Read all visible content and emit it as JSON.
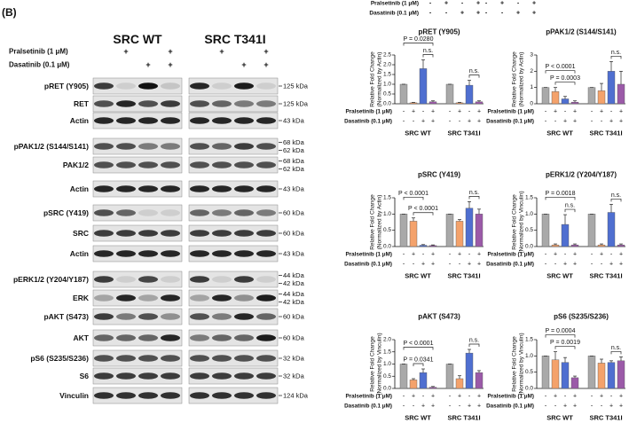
{
  "top_strip": {
    "treatments": [
      {
        "label": "Pralsetinib (1 μM)",
        "signs": [
          "-",
          "+",
          "-",
          "+",
          "-",
          "+",
          "-",
          "+"
        ]
      },
      {
        "label": "Dasatinib (0.1 μM)",
        "signs": [
          "-",
          "-",
          "+",
          "+",
          "-",
          "-",
          "+",
          "+"
        ]
      }
    ]
  },
  "blot": {
    "panel_label": "(B)",
    "columns": [
      "SRC WT",
      "SRC T341I"
    ],
    "treatments": [
      {
        "label": "Pralsetinib (1 μM)",
        "signs": [
          null,
          "+",
          null,
          "+",
          null,
          "+",
          null,
          "+"
        ]
      },
      {
        "label": "Dasatinib (0.1 μM)",
        "signs": [
          null,
          null,
          "+",
          "+",
          null,
          null,
          "+",
          "+"
        ]
      }
    ],
    "rows": [
      {
        "label": "pRET (Y905)",
        "kda": [
          "125 kDa"
        ]
      },
      {
        "label": "RET",
        "kda": [
          "125 kDa"
        ]
      },
      {
        "label": "Actin",
        "kda": [
          "43 kDa"
        ]
      },
      {
        "label": "pPAK1/2 (S144/S141)",
        "kda": [
          "68 kDa",
          "62 kDa"
        ]
      },
      {
        "label": "PAK1/2",
        "kda": [
          "68 kDa",
          "62 kDa"
        ]
      },
      {
        "label": "Actin",
        "kda": [
          "43 kDa"
        ]
      },
      {
        "label": "pSRC (Y419)",
        "kda": [
          "60 kDa"
        ]
      },
      {
        "label": "SRC",
        "kda": [
          "60 kDa"
        ]
      },
      {
        "label": "Actin",
        "kda": [
          "43 kDa"
        ]
      },
      {
        "label": "pERK1/2 (Y204/Y187)",
        "kda": [
          "44 kDa",
          "42 kDa"
        ]
      },
      {
        "label": "ERK",
        "kda": [
          "44 kDa",
          "42 kDa"
        ]
      },
      {
        "label": "pAKT (S473)",
        "kda": [
          "60 kDa"
        ]
      },
      {
        "label": "AKT",
        "kda": [
          "60 kDa"
        ]
      },
      {
        "label": "pS6 (S235/S236)",
        "kda": [
          "32 kDa"
        ]
      },
      {
        "label": "S6",
        "kda": [
          "32 kDa"
        ]
      },
      {
        "label": "Vinculin",
        "kda": [
          "124 kDa"
        ]
      }
    ]
  },
  "chart_data": [
    {
      "type": "bar",
      "title": "pRET (Y905)",
      "ylabel": [
        "Relative Fold Change",
        "(Normalized by Actin)"
      ],
      "categories": [
        "SRC WT",
        "SRC T341I"
      ],
      "series": [
        {
          "color": "#a9a9a9",
          "values": [
            1,
            1
          ],
          "errors": [
            0,
            0
          ]
        },
        {
          "color": "#f4a26b",
          "values": [
            0.05,
            0.05
          ],
          "errors": [
            0.02,
            0.02
          ]
        },
        {
          "color": "#4f6fd0",
          "values": [
            1.8,
            0.95
          ],
          "errors": [
            0.45,
            0.25
          ]
        },
        {
          "color": "#9b5aa8",
          "values": [
            0.1,
            0.1
          ],
          "errors": [
            0.05,
            0.05
          ]
        }
      ],
      "ylim": [
        0,
        2.5
      ],
      "yticks": [
        {
          "value": 0,
          "label": "0.0"
        },
        {
          "value": 0.5,
          "label": "0.5"
        },
        {
          "value": 1,
          "label": "1.0"
        },
        {
          "value": 1.5,
          "label": "1.5"
        },
        {
          "value": 2,
          "label": "2.0"
        },
        {
          "value": 2.5,
          "label": "2.5"
        }
      ],
      "annotations": [
        {
          "text": "P = 0.0280"
        },
        {
          "text": "n.s."
        },
        {
          "text": "n.s."
        }
      ],
      "treatments": [
        {
          "label": "Pralsetinib (1 μM)",
          "signs": [
            "-",
            "+",
            "-",
            "+",
            "-",
            "+",
            "-",
            "+"
          ]
        },
        {
          "label": "Dasatinib (0.1 μM)",
          "signs": [
            "-",
            "-",
            "+",
            "+",
            "-",
            "-",
            "+",
            "+"
          ]
        }
      ]
    },
    {
      "type": "bar",
      "title": "pPAK1/2 (S144/S141)",
      "ylabel": [
        "Relative Fold Change",
        "(Normalized by Actin)"
      ],
      "categories": [
        "SRC WT",
        "SRC T341I"
      ],
      "series": [
        {
          "color": "#a9a9a9",
          "values": [
            1,
            1
          ],
          "errors": [
            0,
            0
          ]
        },
        {
          "color": "#f4a26b",
          "values": [
            0.75,
            0.8
          ],
          "errors": [
            0.25,
            0.45
          ]
        },
        {
          "color": "#4f6fd0",
          "values": [
            0.3,
            2.0
          ],
          "errors": [
            0.15,
            0.6
          ]
        },
        {
          "color": "#9b5aa8",
          "values": [
            0.1,
            1.2
          ],
          "errors": [
            0.08,
            0.8
          ]
        }
      ],
      "ylim": [
        0,
        3
      ],
      "yticks": [
        0,
        1,
        2,
        3
      ],
      "annotations": [
        {
          "text": "P < 0.0001"
        },
        {
          "text": "P = 0.0003"
        },
        {
          "text": "n.s."
        }
      ],
      "treatments": [
        {
          "label": "Pralsetinib (1 μM)",
          "signs": [
            "-",
            "+",
            "-",
            "+",
            "-",
            "+",
            "-",
            "+"
          ]
        },
        {
          "label": "Dasatinib (0.1 μM)",
          "signs": [
            "-",
            "-",
            "+",
            "+",
            "-",
            "-",
            "+",
            "+"
          ]
        }
      ]
    },
    {
      "type": "bar",
      "title": "pSRC (Y419)",
      "ylabel": [
        "Relative Fold Change",
        "(Normalized by Actin)"
      ],
      "categories": [
        "SRC WT",
        "SRC T341I"
      ],
      "series": [
        {
          "color": "#a9a9a9",
          "values": [
            1,
            1
          ],
          "errors": [
            0,
            0
          ]
        },
        {
          "color": "#f4a26b",
          "values": [
            0.78,
            0.78
          ],
          "errors": [
            0.1,
            0.05
          ]
        },
        {
          "color": "#4f6fd0",
          "values": [
            0.04,
            1.18
          ],
          "errors": [
            0.02,
            0.2
          ]
        },
        {
          "color": "#9b5aa8",
          "values": [
            0.03,
            1.0
          ],
          "errors": [
            0.02,
            0.15
          ]
        }
      ],
      "ylim": [
        0,
        1.5
      ],
      "yticks": [
        {
          "value": 0,
          "label": "0.0"
        },
        {
          "value": 0.5,
          "label": "0.5"
        },
        {
          "value": 1,
          "label": "1.0"
        },
        {
          "value": 1.5,
          "label": "1.5"
        }
      ],
      "annotations": [
        {
          "text": "P < 0.0001"
        },
        {
          "text": "P < 0.0001"
        },
        {
          "text": "n.s."
        }
      ],
      "treatments": [
        {
          "label": "Pralsetinib (1 μM)",
          "signs": [
            "-",
            "+",
            "-",
            "+",
            "-",
            "+",
            "-",
            "+"
          ]
        },
        {
          "label": "Dasatinib (0.1 μM)",
          "signs": [
            "-",
            "-",
            "+",
            "+",
            "-",
            "-",
            "+",
            "+"
          ]
        }
      ]
    },
    {
      "type": "bar",
      "title": "pERK1/2 (Y204/Y187)",
      "ylabel": [
        "Relative Fold Change",
        "(Normalized by Vinculin)"
      ],
      "categories": [
        "SRC WT",
        "SRC T341I"
      ],
      "series": [
        {
          "color": "#a9a9a9",
          "values": [
            1,
            1
          ],
          "errors": [
            0,
            0
          ]
        },
        {
          "color": "#f4a26b",
          "values": [
            0.05,
            0.05
          ],
          "errors": [
            0.03,
            0.03
          ]
        },
        {
          "color": "#4f6fd0",
          "values": [
            0.68,
            1.05
          ],
          "errors": [
            0.3,
            0.25
          ]
        },
        {
          "color": "#9b5aa8",
          "values": [
            0.05,
            0.05
          ],
          "errors": [
            0.03,
            0.03
          ]
        }
      ],
      "ylim": [
        0,
        1.5
      ],
      "yticks": [
        {
          "value": 0,
          "label": "0.0"
        },
        {
          "value": 0.5,
          "label": "0.5"
        },
        {
          "value": 1,
          "label": "1.0"
        },
        {
          "value": 1.5,
          "label": "1.5"
        }
      ],
      "annotations": [
        {
          "text": "P = 0.0018"
        },
        {
          "text": "n.s."
        },
        {
          "text": "n.s."
        }
      ],
      "treatments": [
        {
          "label": "Pralsetinib (1 μM)",
          "signs": [
            "-",
            "+",
            "-",
            "+",
            "-",
            "+",
            "-",
            "+"
          ]
        },
        {
          "label": "Dasatinib (0.1 μM)",
          "signs": [
            "-",
            "-",
            "+",
            "+",
            "-",
            "-",
            "+",
            "+"
          ]
        }
      ]
    },
    {
      "type": "bar",
      "title": "pAKT (S473)",
      "ylabel": [
        "Relative Fold Change",
        "(Normalized by Vinculin)"
      ],
      "categories": [
        "SRC WT",
        "SRC T341I"
      ],
      "series": [
        {
          "color": "#a9a9a9",
          "values": [
            1,
            1
          ],
          "errors": [
            0,
            0
          ]
        },
        {
          "color": "#f4a26b",
          "values": [
            0.35,
            0.4
          ],
          "errors": [
            0.05,
            0.12
          ]
        },
        {
          "color": "#4f6fd0",
          "values": [
            0.65,
            1.45
          ],
          "errors": [
            0.15,
            0.15
          ]
        },
        {
          "color": "#9b5aa8",
          "values": [
            0.05,
            0.65
          ],
          "errors": [
            0.03,
            0.08
          ]
        }
      ],
      "ylim": [
        0,
        2
      ],
      "yticks": [
        {
          "value": 0,
          "label": "0.0"
        },
        {
          "value": 0.5,
          "label": "0.5"
        },
        {
          "value": 1,
          "label": "1.0"
        },
        {
          "value": 1.5,
          "label": "1.5"
        },
        {
          "value": 2,
          "label": "2.0"
        }
      ],
      "annotations": [
        {
          "text": "P < 0.0001"
        },
        {
          "text": "P = 0.0341"
        },
        {
          "text": "n.s."
        }
      ],
      "treatments": [
        {
          "label": "Pralsetinib (1 μM)",
          "signs": [
            "-",
            "+",
            "-",
            "+",
            "-",
            "+",
            "-",
            "+"
          ]
        },
        {
          "label": "Dasatinib (0.1 μM)",
          "signs": [
            "-",
            "-",
            "+",
            "+",
            "-",
            "-",
            "+",
            "+"
          ]
        }
      ]
    },
    {
      "type": "bar",
      "title": "pS6 (S235/S236)",
      "ylabel": [
        "Relative Fold Change",
        "(Normalized by Vinculin)"
      ],
      "categories": [
        "SRC WT",
        "SRC T341I"
      ],
      "series": [
        {
          "color": "#a9a9a9",
          "values": [
            1,
            1
          ],
          "errors": [
            0,
            0
          ]
        },
        {
          "color": "#f4a26b",
          "values": [
            0.88,
            0.78
          ],
          "errors": [
            0.25,
            0.12
          ]
        },
        {
          "color": "#4f6fd0",
          "values": [
            0.8,
            0.8
          ],
          "errors": [
            0.15,
            0.05
          ]
        },
        {
          "color": "#9b5aa8",
          "values": [
            0.33,
            0.85
          ],
          "errors": [
            0.05,
            0.12
          ]
        }
      ],
      "ylim": [
        0,
        1.5
      ],
      "yticks": [
        {
          "value": 0,
          "label": "0.0"
        },
        {
          "value": 0.5,
          "label": "0.5"
        },
        {
          "value": 1,
          "label": "1.0"
        },
        {
          "value": 1.5,
          "label": "1.5"
        }
      ],
      "annotations": [
        {
          "text": "P = 0.0004"
        },
        {
          "text": "P = 0.0019"
        },
        {
          "text": "n.s."
        }
      ],
      "treatments": [
        {
          "label": "Pralsetinib (1 μM)",
          "signs": [
            "-",
            "+",
            "-",
            "+",
            "-",
            "+",
            "-",
            "+"
          ]
        },
        {
          "label": "Dasatinib (0.1 μM)",
          "signs": [
            "-",
            "-",
            "+",
            "+",
            "-",
            "-",
            "+",
            "+"
          ]
        }
      ]
    }
  ]
}
